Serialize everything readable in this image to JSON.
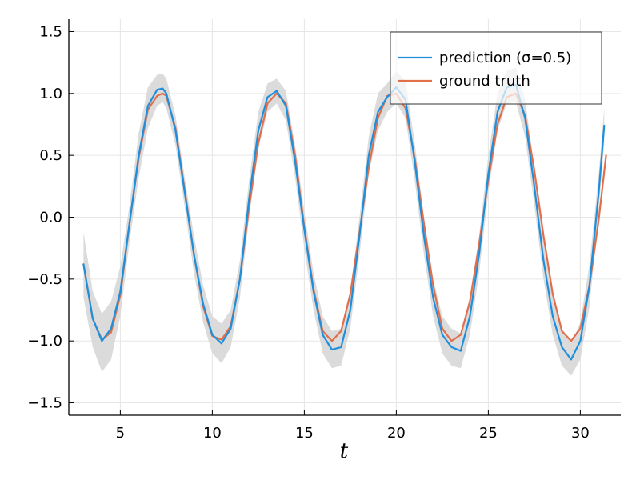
{
  "chart_data": {
    "type": "line",
    "title": "",
    "xlabel": "t",
    "ylabel": "",
    "xlim": [
      2.2,
      32.2
    ],
    "ylim": [
      -1.6,
      1.6
    ],
    "x_ticks": [
      5,
      10,
      15,
      20,
      25,
      30
    ],
    "x_tick_labels": [
      "5",
      "10",
      "15",
      "20",
      "25",
      "30"
    ],
    "y_ticks": [
      -1.5,
      -1.0,
      -0.5,
      0.0,
      0.5,
      1.0,
      1.5
    ],
    "y_tick_labels": [
      "−1.5",
      "−1.0",
      "−0.5",
      "0.0",
      "0.5",
      "1.0",
      "1.5"
    ],
    "grid": true,
    "legend_position": "top-right",
    "series": [
      {
        "name": "prediction (σ=0.5)",
        "color": "#1f8fdc",
        "x": [
          3.0,
          3.5,
          4.0,
          4.5,
          5.0,
          5.5,
          6.0,
          6.5,
          7.0,
          7.3,
          7.5,
          8.0,
          8.5,
          9.0,
          9.5,
          10.0,
          10.5,
          11.0,
          11.5,
          12.0,
          12.5,
          13.0,
          13.5,
          14.0,
          14.5,
          15.0,
          15.5,
          16.0,
          16.5,
          17.0,
          17.5,
          18.0,
          18.5,
          19.0,
          19.5,
          20.0,
          20.5,
          21.0,
          21.5,
          22.0,
          22.5,
          23.0,
          23.5,
          24.0,
          24.5,
          25.0,
          25.5,
          26.0,
          26.5,
          27.0,
          27.5,
          28.0,
          28.5,
          29.0,
          29.5,
          30.0,
          30.5,
          31.0,
          31.3
        ],
        "y": [
          -0.38,
          -0.82,
          -1.0,
          -0.9,
          -0.6,
          -0.05,
          0.5,
          0.9,
          1.03,
          1.04,
          1.0,
          0.7,
          0.2,
          -0.3,
          -0.7,
          -0.95,
          -1.02,
          -0.9,
          -0.5,
          0.15,
          0.7,
          0.97,
          1.02,
          0.9,
          0.45,
          -0.1,
          -0.6,
          -0.95,
          -1.07,
          -1.05,
          -0.75,
          -0.15,
          0.5,
          0.85,
          0.97,
          1.05,
          0.95,
          0.45,
          -0.15,
          -0.65,
          -0.95,
          -1.05,
          -1.08,
          -0.8,
          -0.3,
          0.35,
          0.85,
          1.05,
          1.07,
          0.8,
          0.25,
          -0.35,
          -0.8,
          -1.05,
          -1.15,
          -1.0,
          -0.55,
          0.2,
          0.74
        ]
      },
      {
        "name": "ground truth",
        "color": "#e16f4b",
        "x": [
          3.0,
          3.5,
          4.0,
          4.5,
          5.0,
          5.5,
          6.0,
          6.5,
          7.0,
          7.3,
          7.5,
          8.0,
          8.5,
          9.0,
          9.5,
          10.0,
          10.5,
          11.0,
          11.5,
          12.0,
          12.5,
          13.0,
          13.5,
          14.0,
          14.5,
          15.0,
          15.5,
          16.0,
          16.5,
          17.0,
          17.5,
          18.0,
          18.5,
          19.0,
          19.5,
          20.0,
          20.5,
          21.0,
          21.5,
          22.0,
          22.5,
          23.0,
          23.5,
          24.0,
          24.5,
          25.0,
          25.5,
          26.0,
          26.5,
          27.0,
          27.5,
          28.0,
          28.5,
          29.0,
          29.5,
          30.0,
          30.5,
          31.0,
          31.4
        ],
        "y": [
          -0.38,
          -0.82,
          -0.99,
          -0.93,
          -0.63,
          -0.05,
          0.48,
          0.87,
          0.98,
          1.0,
          0.98,
          0.72,
          0.22,
          -0.3,
          -0.72,
          -0.96,
          -0.99,
          -0.88,
          -0.5,
          0.08,
          0.6,
          0.92,
          1.0,
          0.92,
          0.5,
          -0.08,
          -0.58,
          -0.92,
          -1.0,
          -0.92,
          -0.62,
          -0.12,
          0.4,
          0.8,
          0.98,
          1.0,
          0.88,
          0.48,
          -0.05,
          -0.55,
          -0.9,
          -1.0,
          -0.95,
          -0.68,
          -0.22,
          0.3,
          0.75,
          0.97,
          1.0,
          0.82,
          0.38,
          -0.15,
          -0.62,
          -0.92,
          -1.0,
          -0.9,
          -0.55,
          -0.02,
          0.5
        ]
      }
    ],
    "uncertainty_band": {
      "color": "#d9d9d9",
      "x": [
        3.0,
        3.5,
        4.0,
        4.5,
        5.0,
        5.5,
        6.0,
        6.5,
        7.0,
        7.3,
        7.5,
        8.0,
        8.5,
        9.0,
        9.5,
        10.0,
        10.5,
        11.0,
        11.5,
        12.0,
        12.5,
        13.0,
        13.5,
        14.0,
        14.5,
        15.0,
        15.5,
        16.0,
        16.5,
        17.0,
        17.5,
        18.0,
        18.5,
        19.0,
        19.5,
        20.0,
        20.5,
        21.0,
        21.5,
        22.0,
        22.5,
        23.0,
        23.5,
        24.0,
        24.5,
        25.0,
        25.5,
        26.0,
        26.5,
        27.0,
        27.5,
        28.0,
        28.5,
        29.0,
        29.5,
        30.0,
        30.5,
        31.0,
        31.3
      ],
      "lower": [
        -0.65,
        -1.05,
        -1.25,
        -1.15,
        -0.8,
        -0.2,
        0.32,
        0.72,
        0.9,
        0.93,
        0.88,
        0.58,
        0.08,
        -0.45,
        -0.85,
        -1.1,
        -1.18,
        -1.05,
        -0.65,
        0.0,
        0.55,
        0.85,
        0.92,
        0.78,
        0.32,
        -0.25,
        -0.75,
        -1.1,
        -1.22,
        -1.2,
        -0.9,
        -0.3,
        0.35,
        0.7,
        0.85,
        0.92,
        0.8,
        0.3,
        -0.3,
        -0.8,
        -1.1,
        -1.2,
        -1.22,
        -0.95,
        -0.45,
        0.2,
        0.7,
        0.92,
        0.93,
        0.65,
        0.1,
        -0.5,
        -0.95,
        -1.2,
        -1.28,
        -1.15,
        -0.72,
        0.05,
        0.6
      ],
      "upper": [
        -0.12,
        -0.6,
        -0.78,
        -0.68,
        -0.4,
        0.1,
        0.68,
        1.05,
        1.15,
        1.16,
        1.12,
        0.82,
        0.32,
        -0.15,
        -0.55,
        -0.8,
        -0.86,
        -0.75,
        -0.35,
        0.3,
        0.85,
        1.08,
        1.12,
        1.02,
        0.58,
        0.05,
        -0.45,
        -0.8,
        -0.92,
        -0.9,
        -0.6,
        0.0,
        0.65,
        1.0,
        1.08,
        1.18,
        1.1,
        0.6,
        0.0,
        -0.5,
        -0.8,
        -0.9,
        -0.94,
        -0.65,
        -0.15,
        0.5,
        1.0,
        1.18,
        1.21,
        0.95,
        0.4,
        -0.2,
        -0.65,
        -0.9,
        -1.02,
        -0.85,
        -0.38,
        0.35,
        0.88
      ]
    }
  }
}
